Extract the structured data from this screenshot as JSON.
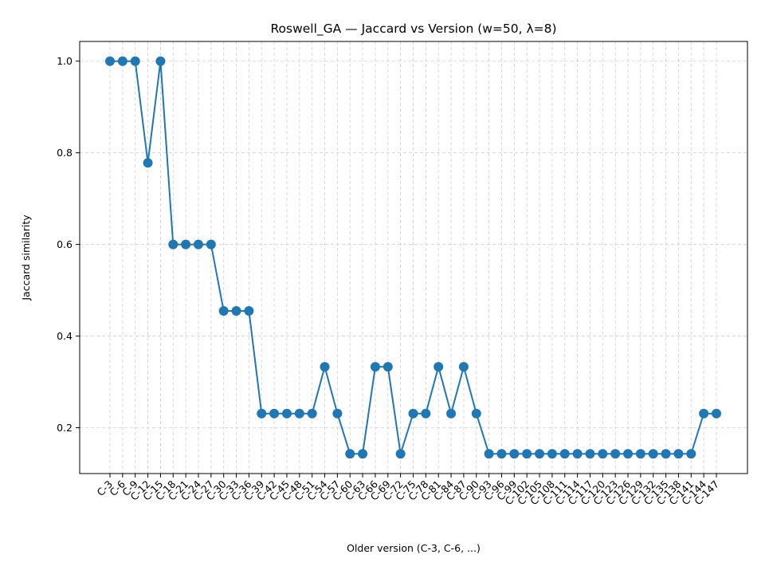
{
  "chart_data": {
    "type": "line",
    "title": "Roswell_GA — Jaccard vs Version (w=50, λ=8)",
    "xlabel": "Older version (C-3, C-6, ...)",
    "ylabel": "Jaccard similarity",
    "categories": [
      "C-3",
      "C-6",
      "C-9",
      "C-12",
      "C-15",
      "C-18",
      "C-21",
      "C-24",
      "C-27",
      "C-30",
      "C-33",
      "C-36",
      "C-39",
      "C-42",
      "C-45",
      "C-48",
      "C-51",
      "C-54",
      "C-57",
      "C-60",
      "C-63",
      "C-66",
      "C-69",
      "C-72",
      "C-75",
      "C-78",
      "C-81",
      "C-84",
      "C-87",
      "C-90",
      "C-93",
      "C-96",
      "C-99",
      "C-102",
      "C-105",
      "C-108",
      "C-111",
      "C-114",
      "C-117",
      "C-120",
      "C-123",
      "C-126",
      "C-129",
      "C-132",
      "C-135",
      "C-138",
      "C-141",
      "C-144",
      "C-147"
    ],
    "series": [
      {
        "name": "",
        "color": "#1f77b4",
        "values": [
          1.0,
          1.0,
          1.0,
          0.778,
          1.0,
          0.6,
          0.6,
          0.6,
          0.6,
          0.455,
          0.455,
          0.455,
          0.231,
          0.231,
          0.231,
          0.231,
          0.231,
          0.333,
          0.231,
          0.143,
          0.143,
          0.333,
          0.333,
          0.143,
          0.231,
          0.231,
          0.333,
          0.231,
          0.333,
          0.231,
          0.143,
          0.143,
          0.143,
          0.143,
          0.143,
          0.143,
          0.143,
          0.143,
          0.143,
          0.143,
          0.143,
          0.143,
          0.143,
          0.143,
          0.143,
          0.143,
          0.143,
          0.231,
          0.231
        ]
      }
    ],
    "yticks": [
      "0.2",
      "0.4",
      "0.6",
      "0.8",
      "1.0"
    ],
    "ylim": [
      0.1,
      1.043
    ],
    "grid": true,
    "x_tick_rotation": "45"
  }
}
